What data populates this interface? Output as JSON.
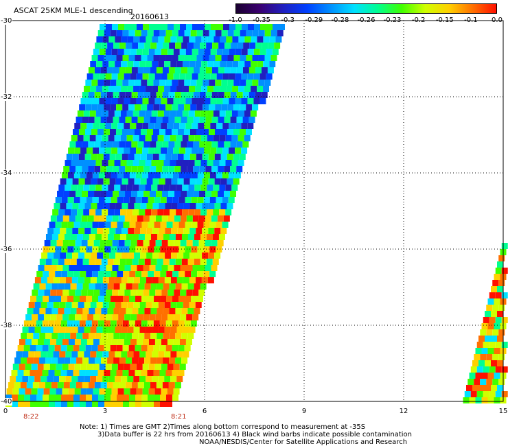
{
  "header": {
    "title": "ASCAT 25KM MLE-1 descending",
    "date": "20160613"
  },
  "colorbar": {
    "labels": [
      "-1.0",
      "-0.35",
      "-0.3",
      "-0.29",
      "-0.28",
      "-0.26",
      "-0.23",
      "-0.2",
      "-0.15",
      "-0.1",
      "0.0"
    ],
    "colors": [
      "#1a0030",
      "#3a0070",
      "#2020c0",
      "#0040ff",
      "#0090ff",
      "#00e0ff",
      "#00ff90",
      "#40ff00",
      "#d0ff00",
      "#ffd000",
      "#ff7000",
      "#ff1000"
    ]
  },
  "axes": {
    "lat_labels": [
      "-30",
      "-32",
      "-34",
      "-36",
      "-38",
      "-40"
    ],
    "lon_labels": [
      "0",
      "3",
      "6",
      "9",
      "12",
      "15"
    ],
    "lat_range": [
      -30,
      -40
    ],
    "lon_range": [
      0,
      15
    ],
    "grid": "dotted"
  },
  "times": [
    "8:22",
    "8:21"
  ],
  "notes": {
    "line1": "Note: 1) Times are GMT 2)Times along bottom correspond to measurement at -35S",
    "line2": "3)Data buffer is 22 hrs from 20160613 4) Black wind barbs indicate possible contamination",
    "line3": "NOAA/NESDIS/Center for Satellite Applications and Research"
  }
}
